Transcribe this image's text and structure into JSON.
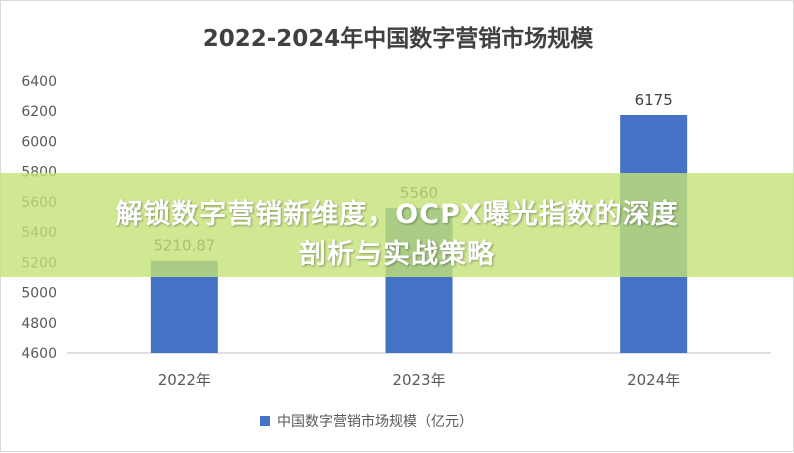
{
  "chart_data": {
    "type": "bar",
    "title": "2022-2024年中国数字营销市场规模",
    "categories": [
      "2022年",
      "2023年",
      "2024年"
    ],
    "series": [
      {
        "name": "中国数字营销市场规模（亿元）",
        "values": [
          5210.87,
          5560,
          6175
        ]
      }
    ],
    "data_labels": [
      "5210.87",
      "5560",
      "6175"
    ],
    "ylim": [
      4600,
      6400
    ],
    "yticks": [
      4600,
      4800,
      5000,
      5200,
      5400,
      5600,
      5800,
      6000,
      6200,
      6400
    ],
    "grid": false,
    "legend": "bottom",
    "bar_color": "#4472C4"
  },
  "overlay": {
    "line1": "解锁数字营销新维度，OCPX曝光指数的深度",
    "line2": "剖析与实战策略",
    "color": "#C4E276"
  }
}
